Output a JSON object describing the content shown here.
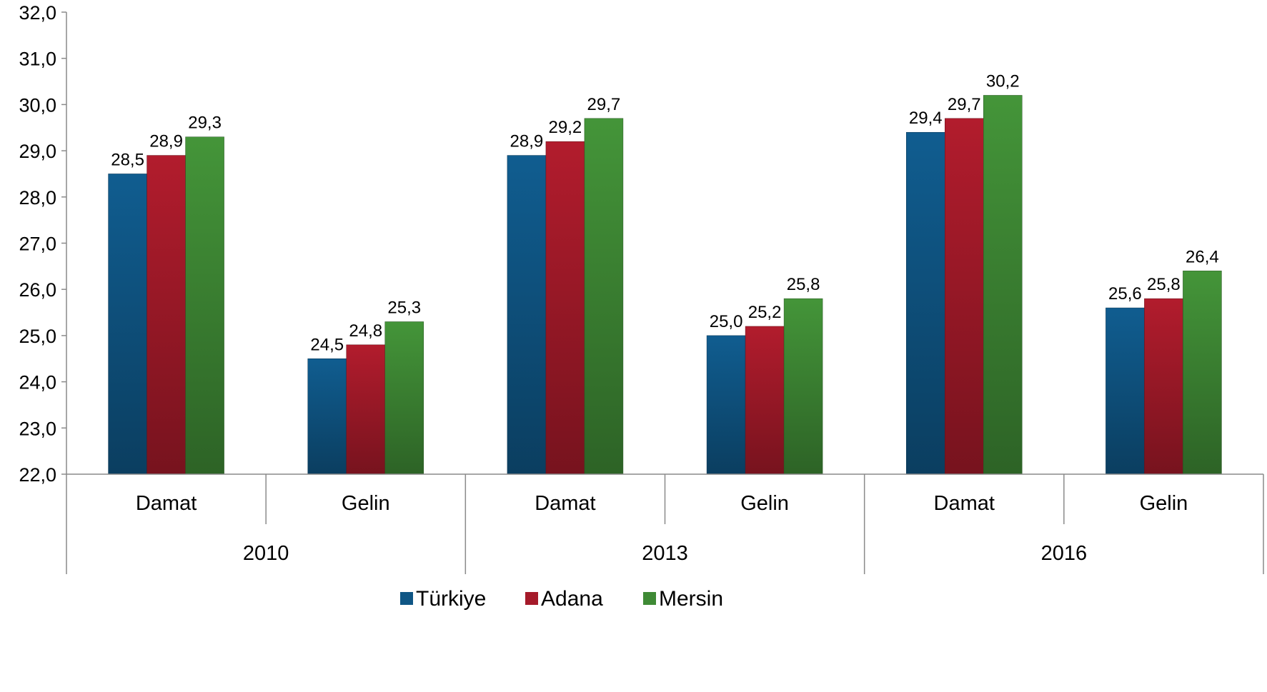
{
  "chart_data": {
    "type": "bar",
    "title": "",
    "xlabel": "",
    "ylabel": "",
    "ylim": [
      22,
      32
    ],
    "yticks": [
      "22,0",
      "23,0",
      "24,0",
      "25,0",
      "26,0",
      "27,0",
      "28,0",
      "29,0",
      "30,0",
      "31,0",
      "32,0"
    ],
    "groups": [
      "2010",
      "2013",
      "2016"
    ],
    "categories": [
      "Damat",
      "Gelin",
      "Damat",
      "Gelin",
      "Damat",
      "Gelin"
    ],
    "series": [
      {
        "name": "Türkiye",
        "color": "#0f5685",
        "values": [
          28.5,
          24.5,
          28.9,
          25.0,
          29.4,
          25.6
        ],
        "labels": [
          "28,5",
          "24,5",
          "28,9",
          "25,0",
          "29,4",
          "25,6"
        ]
      },
      {
        "name": "Adana",
        "color": "#a51a2a",
        "values": [
          28.9,
          24.8,
          29.2,
          25.2,
          29.7,
          25.8
        ],
        "labels": [
          "28,9",
          "24,8",
          "29,2",
          "25,2",
          "29,7",
          "25,8"
        ]
      },
      {
        "name": "Mersin",
        "color": "#3f8a35",
        "values": [
          29.3,
          25.3,
          29.7,
          25.8,
          30.2,
          26.4
        ],
        "labels": [
          "29,3",
          "25,3",
          "29,7",
          "25,8",
          "30,2",
          "26,4"
        ]
      }
    ],
    "grid": false,
    "legend_position": "bottom"
  }
}
